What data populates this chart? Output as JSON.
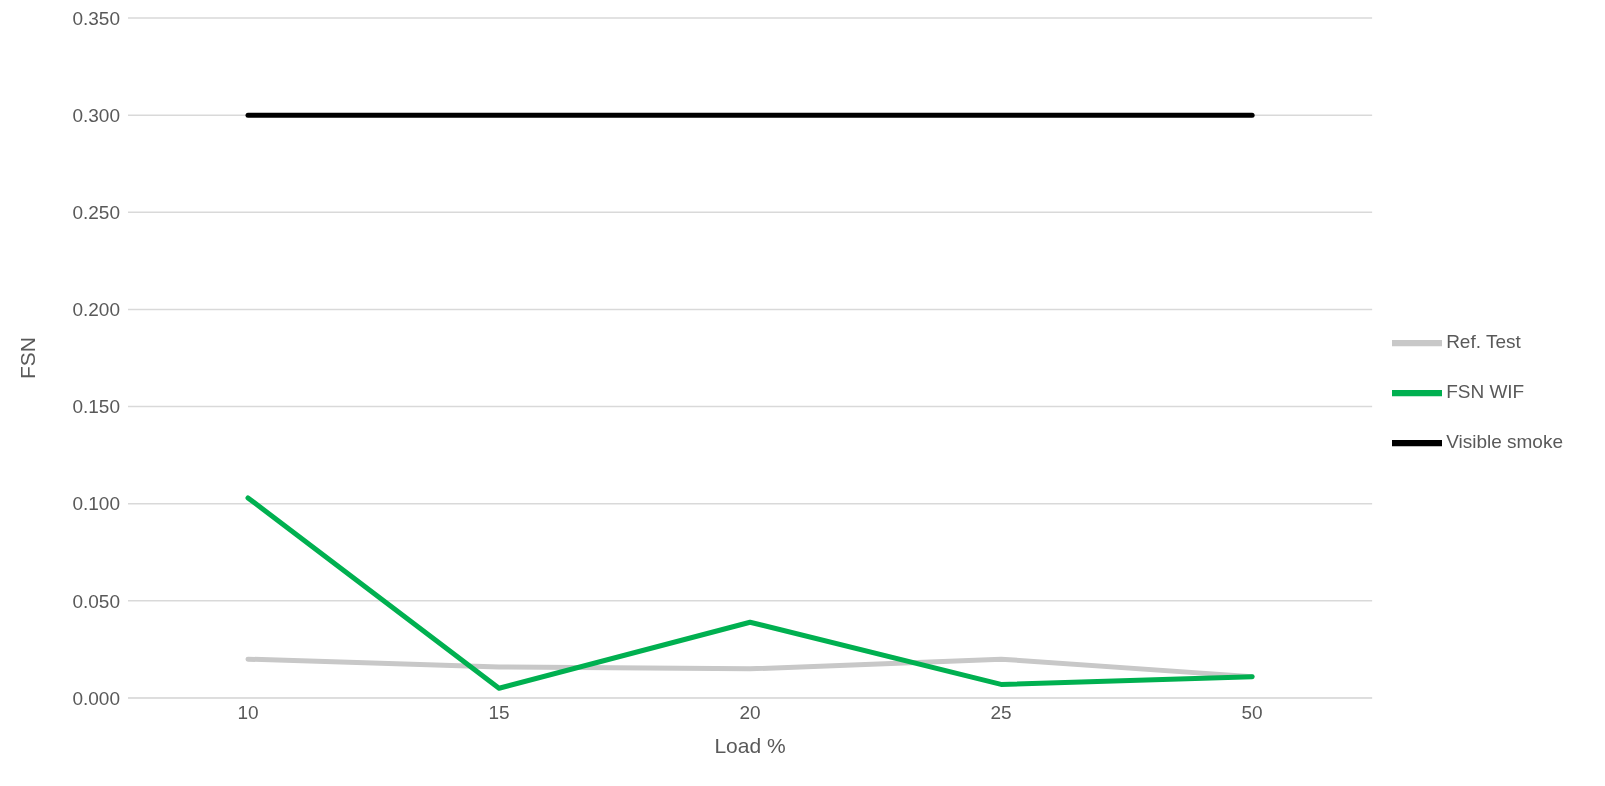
{
  "chart_data": {
    "type": "line",
    "xlabel": "Load %",
    "ylabel": "FSN",
    "categories": [
      "10",
      "15",
      "20",
      "25",
      "50"
    ],
    "series": [
      {
        "name": "Ref. Test",
        "color": "#c8c8c8",
        "values": [
          0.02,
          0.016,
          0.015,
          0.02,
          0.011
        ]
      },
      {
        "name": "FSN WIF",
        "color": "#00b050",
        "values": [
          0.103,
          0.005,
          0.039,
          0.007,
          0.011
        ]
      },
      {
        "name": "Visible smoke",
        "color": "#000000",
        "values": [
          0.3,
          0.3,
          0.3,
          0.3,
          0.3
        ]
      }
    ],
    "ylim": [
      0,
      0.35
    ],
    "yticks": [
      {
        "value": 0,
        "label": "0.000"
      },
      {
        "value": 0.05,
        "label": "0.050"
      },
      {
        "value": 0.1,
        "label": "0.100"
      },
      {
        "value": 0.15,
        "label": "0.150"
      },
      {
        "value": 0.2,
        "label": "0.200"
      },
      {
        "value": 0.25,
        "label": "0.250"
      },
      {
        "value": 0.3,
        "label": "0.300"
      },
      {
        "value": 0.35,
        "label": "0.350"
      }
    ],
    "grid": "y",
    "legend": "right",
    "marker": "none",
    "line_style": "solid"
  }
}
